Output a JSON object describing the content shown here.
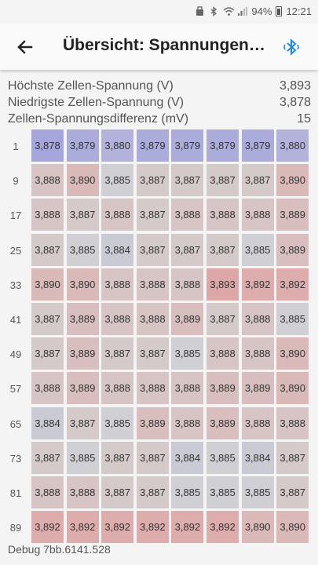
{
  "statusbar": {
    "battery": "94%",
    "time": "12:21"
  },
  "appbar": {
    "title": "Übersicht: Spannungen…"
  },
  "stats": [
    {
      "label": "Höchste Zellen-Spannung (V)",
      "value": "3,893"
    },
    {
      "label": "Niedrigste Zellen-Spannung (V)",
      "value": "3,878"
    },
    {
      "label": "Zellen-Spannungsdifferenz (mV)",
      "value": "15"
    }
  ],
  "colors": {
    "low": "#a6a6dc",
    "mid": "#d3d3d3",
    "high": "#dea7a7"
  },
  "grid": {
    "rows": [
      {
        "label": "1",
        "cells": [
          "3,878",
          "3,879",
          "3,880",
          "3,879",
          "3,879",
          "3,879",
          "3,879",
          "3,880"
        ]
      },
      {
        "label": "9",
        "cells": [
          "3,888",
          "3,890",
          "3,885",
          "3,887",
          "3,887",
          "3,887",
          "3,887",
          "3,890"
        ]
      },
      {
        "label": "17",
        "cells": [
          "3,888",
          "3,887",
          "3,888",
          "3,887",
          "3,888",
          "3,888",
          "3,888",
          "3,889"
        ]
      },
      {
        "label": "25",
        "cells": [
          "3,887",
          "3,885",
          "3,884",
          "3,887",
          "3,887",
          "3,887",
          "3,885",
          "3,889"
        ]
      },
      {
        "label": "33",
        "cells": [
          "3,890",
          "3,890",
          "3,888",
          "3,888",
          "3,888",
          "3,893",
          "3,892",
          "3,892"
        ]
      },
      {
        "label": "41",
        "cells": [
          "3,887",
          "3,889",
          "3,888",
          "3,888",
          "3,889",
          "3,887",
          "3,888",
          "3,885"
        ]
      },
      {
        "label": "49",
        "cells": [
          "3,887",
          "3,889",
          "3,887",
          "3,887",
          "3,885",
          "3,888",
          "3,888",
          "3,890"
        ]
      },
      {
        "label": "57",
        "cells": [
          "3,888",
          "3,889",
          "3,888",
          "3,888",
          "3,888",
          "3,889",
          "3,889",
          "3,890"
        ]
      },
      {
        "label": "65",
        "cells": [
          "3,884",
          "3,887",
          "3,885",
          "3,889",
          "3,888",
          "3,889",
          "3,888",
          "3,888"
        ]
      },
      {
        "label": "73",
        "cells": [
          "3,887",
          "3,885",
          "3,887",
          "3,887",
          "3,884",
          "3,885",
          "3,884",
          "3,887"
        ]
      },
      {
        "label": "81",
        "cells": [
          "3,888",
          "3,888",
          "3,887",
          "3,887",
          "3,885",
          "3,885",
          "3,885",
          "3,887"
        ]
      },
      {
        "label": "89",
        "cells": [
          "3,892",
          "3,892",
          "3,892",
          "3,892",
          "3,892",
          "3,892",
          "3,890",
          "3,890"
        ]
      }
    ]
  },
  "footer": {
    "debug": "Debug 7bb.6141.528"
  }
}
